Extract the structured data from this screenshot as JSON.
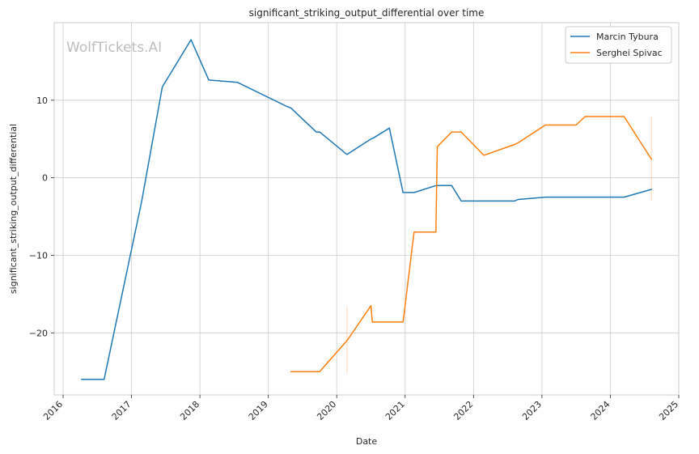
{
  "chart_data": {
    "type": "line",
    "title": "significant_striking_output_differential over time",
    "xlabel": "Date",
    "ylabel": "significant_striking_output_differential",
    "watermark": "WolfTickets.AI",
    "xlim": [
      2015.87,
      2025.0
    ],
    "ylim": [
      -28.0,
      20.0
    ],
    "x_ticks": [
      2016,
      2017,
      2018,
      2019,
      2020,
      2021,
      2022,
      2023,
      2024,
      2025
    ],
    "x_tick_labels": [
      "2016",
      "2017",
      "2018",
      "2019",
      "2020",
      "2021",
      "2022",
      "2023",
      "2024",
      "2025"
    ],
    "y_ticks": [
      -20,
      -10,
      0,
      10
    ],
    "y_tick_labels": [
      "−20",
      "−10",
      "0",
      "10"
    ],
    "grid": true,
    "legend_position": "top-right",
    "series": [
      {
        "name": "Marcin Tybura",
        "color": "#1f77b4",
        "x": [
          2016.27,
          2016.6,
          2017.15,
          2017.45,
          2017.87,
          2018.13,
          2018.55,
          2019.27,
          2019.33,
          2019.7,
          2019.75,
          2020.15,
          2020.5,
          2020.55,
          2020.77,
          2020.97,
          2021.13,
          2021.45,
          2021.68,
          2021.82,
          2022.6,
          2022.65,
          2023.05,
          2023.5,
          2023.75,
          2024.2,
          2024.6
        ],
        "y": [
          -26.0,
          -26.0,
          -3.0,
          11.7,
          17.8,
          12.6,
          12.3,
          9.2,
          9.0,
          5.9,
          5.9,
          3.0,
          5.0,
          5.2,
          6.4,
          -1.9,
          -1.9,
          -1.0,
          -1.0,
          -3.0,
          -3.0,
          -2.8,
          -2.5,
          -2.5,
          -2.5,
          -2.5,
          -1.5
        ]
      },
      {
        "name": "Serghei Spivac",
        "color": "#ff7f0e",
        "x": [
          2019.33,
          2019.75,
          2020.15,
          2020.5,
          2020.52,
          2020.97,
          2021.13,
          2021.45,
          2021.47,
          2021.68,
          2021.82,
          2022.15,
          2022.6,
          2022.65,
          2023.05,
          2023.5,
          2023.63,
          2024.2,
          2024.6
        ],
        "y": [
          -25.0,
          -25.0,
          -21.0,
          -16.5,
          -18.6,
          -18.6,
          -7.0,
          -7.0,
          4.0,
          5.9,
          5.9,
          2.9,
          4.3,
          4.5,
          6.8,
          6.8,
          7.9,
          7.9,
          2.4
        ]
      }
    ],
    "error_bars": [
      {
        "series": "Serghei Spivac",
        "x": 2020.15,
        "low": -25.2,
        "high": -16.6
      },
      {
        "series": "Serghei Spivac",
        "x": 2024.6,
        "low": -3.0,
        "high": 7.9
      }
    ]
  }
}
